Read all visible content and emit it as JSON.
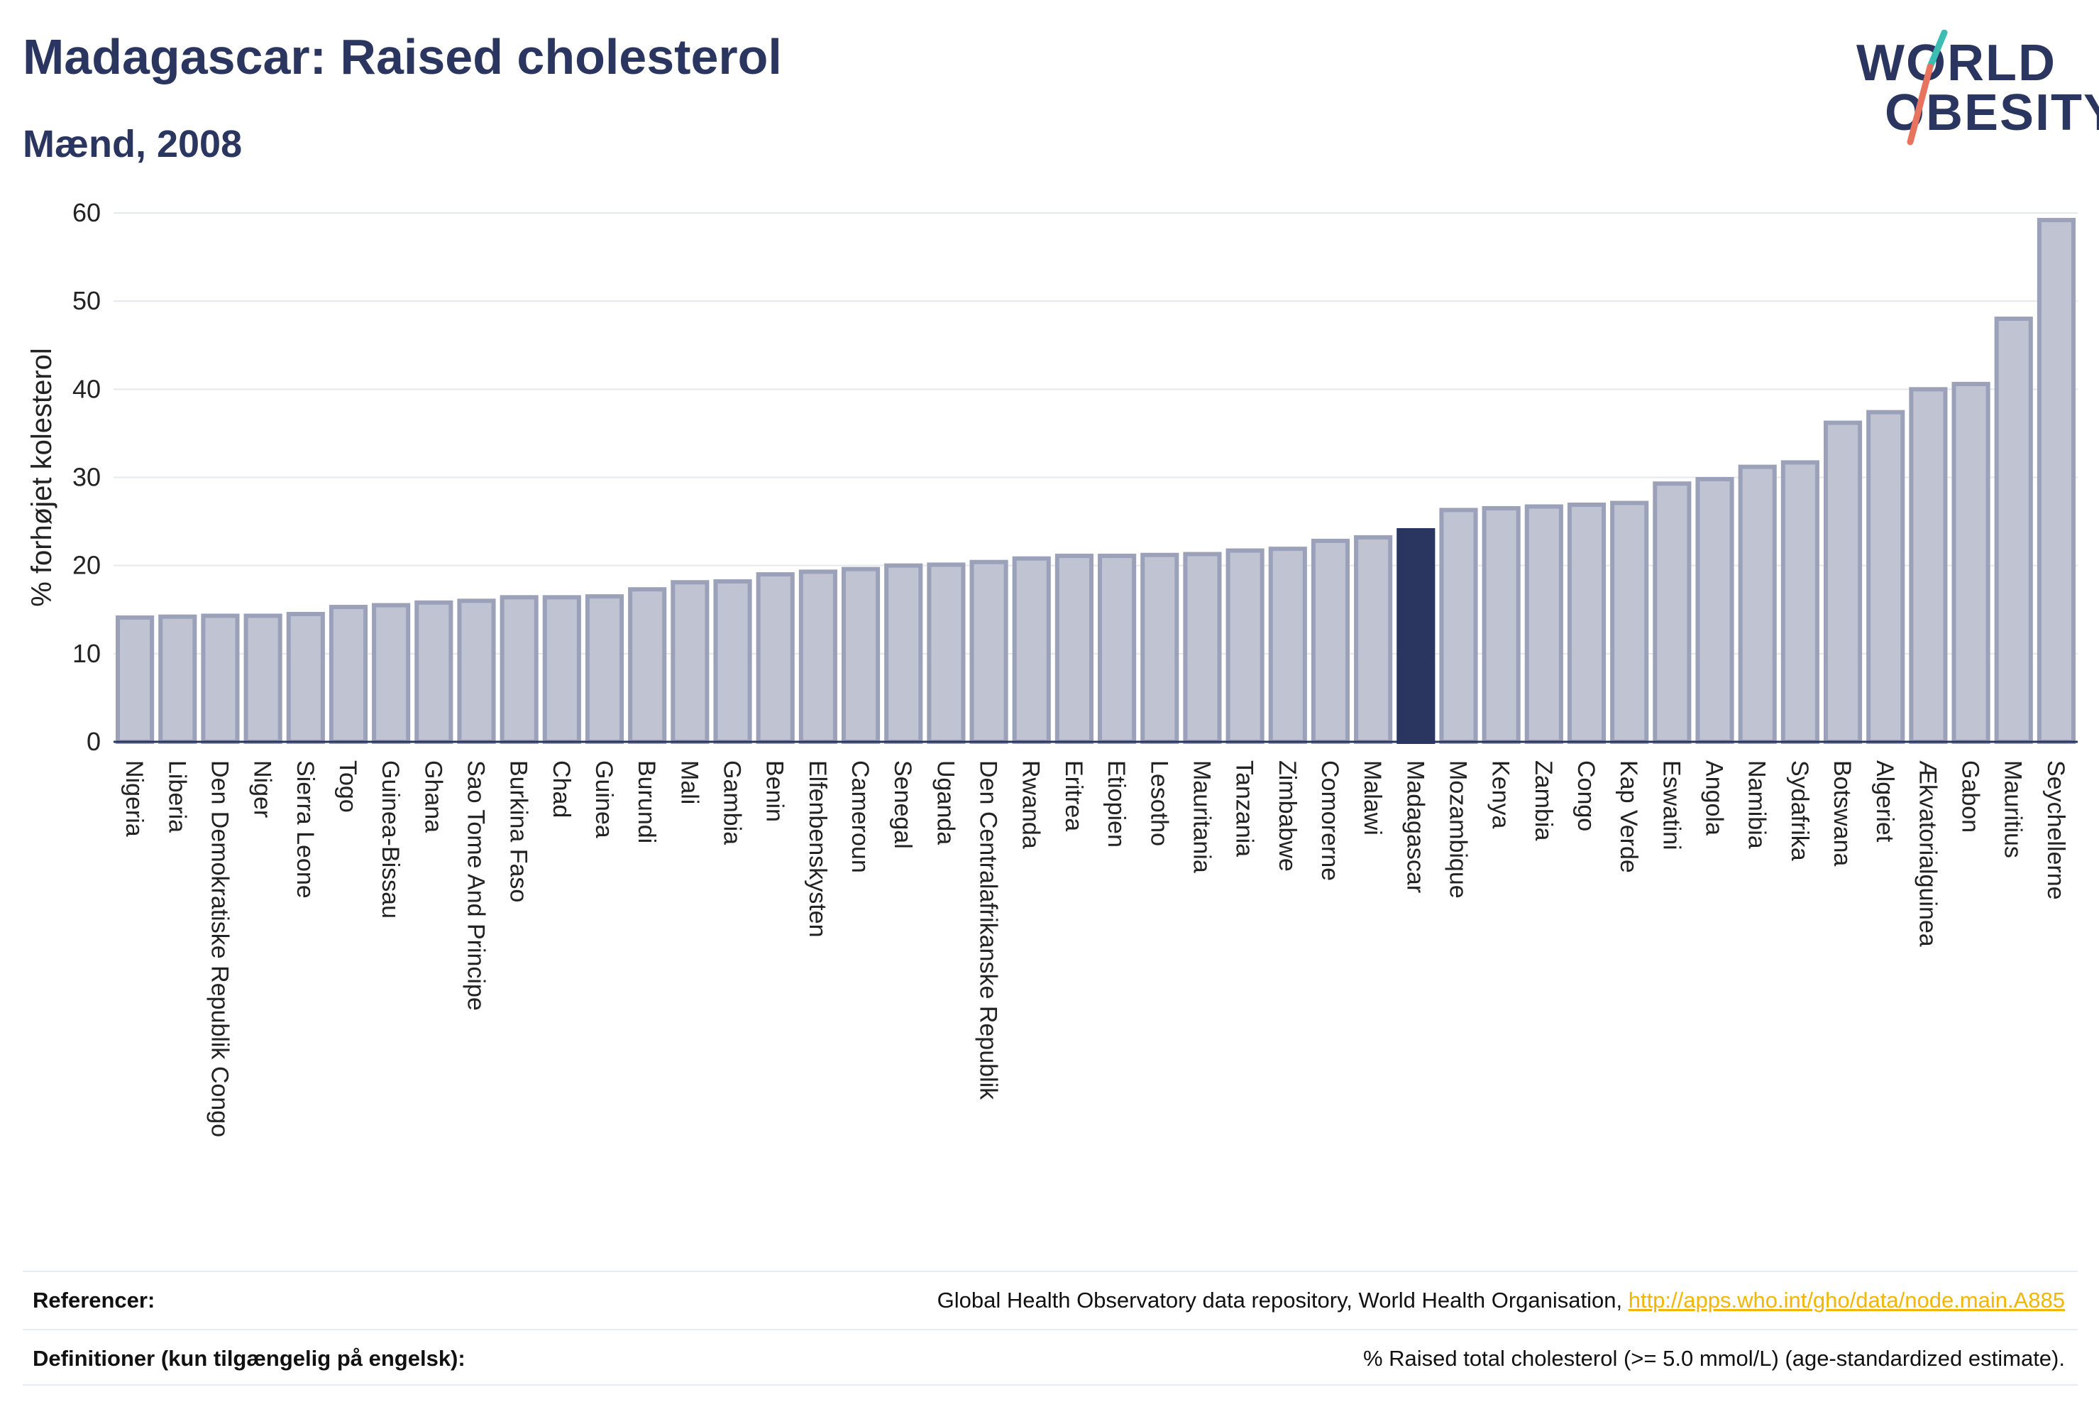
{
  "header": {
    "title": "Madagascar: Raised cholesterol",
    "subtitle": "Mænd, 2008",
    "logo_line1": "WORLD",
    "logo_line2": "OBESITY"
  },
  "colors": {
    "bar_fill": "#bfc3d2",
    "bar_stroke": "#9ba1b8",
    "highlight": "#2a3560",
    "link": "#f2b500",
    "logo_teal": "#3bbdb4",
    "logo_coral": "#e8735e"
  },
  "footer": {
    "references_label": "Referencer:",
    "references_text": "Global Health Observatory data repository, World Health Organisation, ",
    "references_link": "http://apps.who.int/gho/data/node.main.A885",
    "definitions_label": "Definitioner (kun tilgængelig på engelsk):",
    "definitions_text": "% Raised total cholesterol (>= 5.0 mmol/L) (age-standardized estimate)."
  },
  "chart_data": {
    "type": "bar",
    "ylabel": "% forhøjet kolesterol",
    "ylim": [
      0,
      60
    ],
    "yticks": [
      0,
      10,
      20,
      30,
      40,
      50,
      60
    ],
    "grid": true,
    "highlight": "Madagascar",
    "categories": [
      "Nigeria",
      "Liberia",
      "Den Demokratiske Republik Congo",
      "Niger",
      "Sierra Leone",
      "Togo",
      "Guinea-Bissau",
      "Ghana",
      "Sao Tome And Principe",
      "Burkina Faso",
      "Chad",
      "Guinea",
      "Burundi",
      "Mali",
      "Gambia",
      "Benin",
      "Elfenbenskysten",
      "Cameroun",
      "Senegal",
      "Uganda",
      "Den Centralafrikanske Republik",
      "Rwanda",
      "Eritrea",
      "Etiopien",
      "Lesotho",
      "Mauritania",
      "Tanzania",
      "Zimbabwe",
      "Comorerne",
      "Malawi",
      "Madagascar",
      "Mozambique",
      "Kenya",
      "Zambia",
      "Congo",
      "Kap Verde",
      "Eswatini",
      "Angola",
      "Namibia",
      "Sydafrika",
      "Botswana",
      "Algeriet",
      "Ækvatorialguinea",
      "Gabon",
      "Mauritius",
      "Seychellerne"
    ],
    "values": [
      14.1,
      14.2,
      14.3,
      14.3,
      14.5,
      15.3,
      15.5,
      15.8,
      16.0,
      16.4,
      16.4,
      16.5,
      17.3,
      18.1,
      18.2,
      19.0,
      19.3,
      19.6,
      20.0,
      20.1,
      20.4,
      20.8,
      21.1,
      21.1,
      21.2,
      21.3,
      21.7,
      21.9,
      22.8,
      23.2,
      24.0,
      26.3,
      26.5,
      26.7,
      26.9,
      27.1,
      29.3,
      29.8,
      31.2,
      31.7,
      36.2,
      37.4,
      40.0,
      40.6,
      48.0,
      59.2
    ]
  }
}
